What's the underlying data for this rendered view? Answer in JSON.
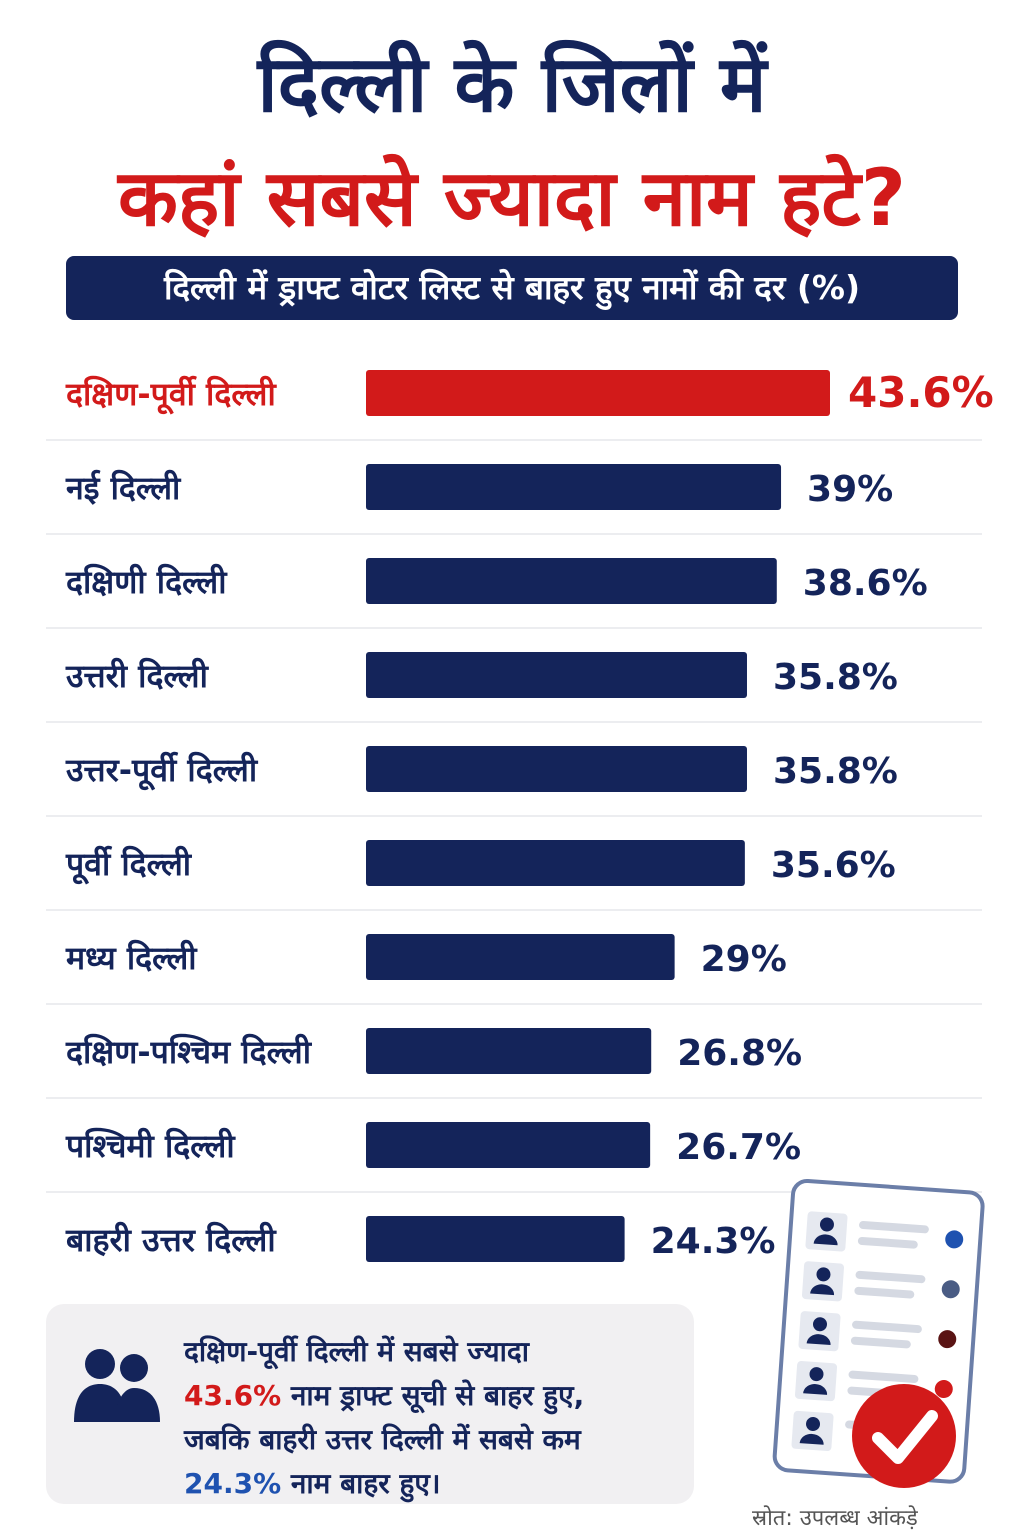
{
  "title_line1": "दिल्ली के जिलों में",
  "title_line2": "कहां सबसे ज्यादा नाम हटे?",
  "subtitle": "दिल्ली में ड्राफ्ट वोटर लिस्ट से बाहर हुए नामों की दर (%)",
  "chart_data": {
    "type": "bar",
    "orientation": "horizontal",
    "title": "दिल्ली के जिलों में कहां सबसे ज्यादा नाम हटे?",
    "subtitle": "दिल्ली में ड्राफ्ट वोटर लिस्ट से बाहर हुए नामों की दर (%)",
    "categories": [
      "दक्षिण-पूर्वी दिल्ली",
      "नई दिल्ली",
      "दक्षिणी दिल्ली",
      "उत्तरी दिल्ली",
      "उत्तर-पूर्वी दिल्ली",
      "पूर्वी दिल्ली",
      "मध्य दिल्ली",
      "दक्षिण-पश्चिम दिल्ली",
      "पश्चिमी दिल्ली",
      "बाहरी उत्तर दिल्ली"
    ],
    "values": [
      43.6,
      39,
      38.6,
      35.8,
      35.8,
      35.6,
      29,
      26.8,
      26.7,
      24.3
    ],
    "value_labels": [
      "43.6%",
      "39%",
      "38.6%",
      "35.8%",
      "35.8%",
      "35.6%",
      "29%",
      "26.8%",
      "26.7%",
      "24.3%"
    ],
    "highlight_index": 0,
    "colors": {
      "bar": "#14245a",
      "highlight": "#d21a1a"
    },
    "grid": false,
    "xlim": [
      0,
      43.6
    ]
  },
  "summary": {
    "line1": "दक्षिण-पूर्वी दिल्ली में सबसे ज्यादा",
    "line2_value": "43.6%",
    "line2_text": " नाम ड्राफ्ट सूची से बाहर हुए,",
    "line3": "जबकि बाहरी उत्तर दिल्ली में सबसे कम",
    "line4_value": "24.3%",
    "line4_text": " नाम बाहर हुए।",
    "icon": "people-icon"
  },
  "source": "स्रोत: उपलब्ध आंकड़े",
  "colors": {
    "navy": "#14245a",
    "red": "#d21a1a",
    "blue": "#1f52b0"
  }
}
